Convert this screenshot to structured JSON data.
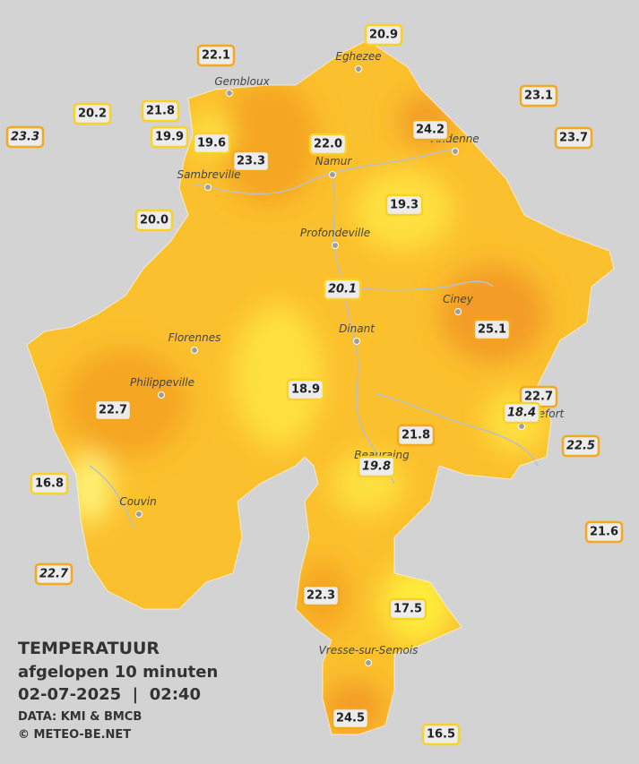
{
  "title": "TEMPERATUUR",
  "subtitle": "afgelopen 10 minuten",
  "datetime": "02-07-2025  |  02:40",
  "source": "DATA: KMI & BMCB",
  "site": "© METEO-BE.NET",
  "towns": [
    "Eghezee",
    "Gembloux",
    "Andenne",
    "Namur",
    "Sambreville",
    "Profondeville",
    "Ciney",
    "Dinant",
    "Florennes",
    "Philippeville",
    "Rochefort",
    "Beauraing",
    "Couvin",
    "Vresse-sur-Semois"
  ],
  "stations": [
    "20.9",
    "22.1",
    "23.1",
    "20.2",
    "21.8",
    "23.3",
    "19.9",
    "19.6",
    "24.2",
    "23.7",
    "22.0",
    "23.3",
    "19.3",
    "20.0",
    "20.1",
    "25.1",
    "18.9",
    "22.7",
    "18.4",
    "22.7",
    "21.8",
    "22.5",
    "19.8",
    "16.8",
    "21.6",
    "22.7",
    "22.3",
    "17.5",
    "24.5",
    "16.5"
  ]
}
